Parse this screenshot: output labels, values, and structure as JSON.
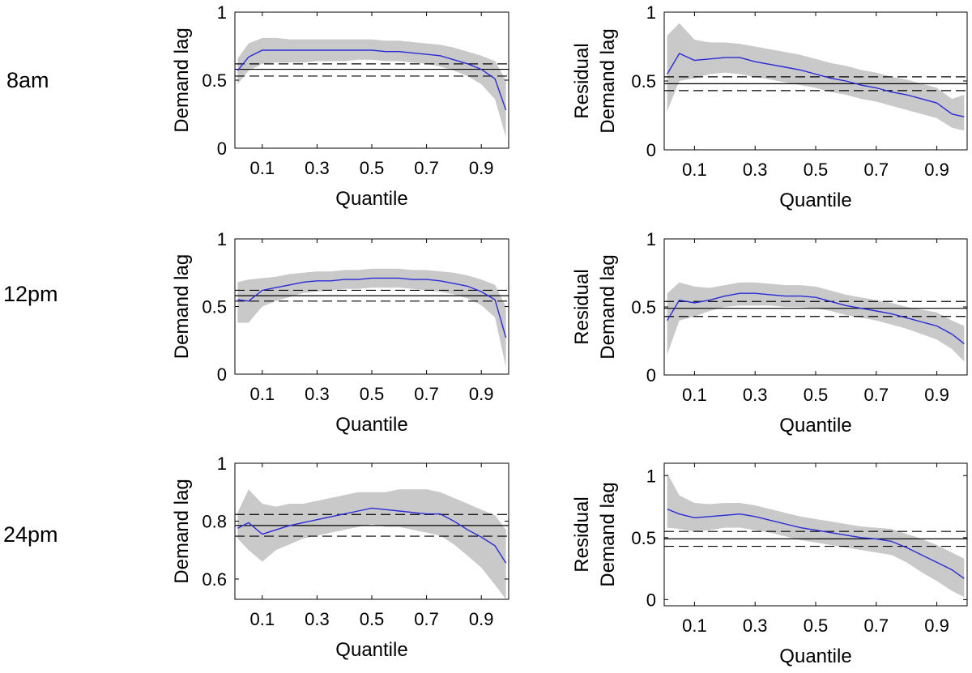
{
  "row_labels": [
    "8am",
    "12pm",
    "24pm"
  ],
  "colors": {
    "band": "#c9c9c9",
    "line": "#2a2ad6",
    "ref": "#000000"
  },
  "chart_data": [
    {
      "type": "line",
      "title": "",
      "row": "8am",
      "xlabel": "Quantile",
      "ylabel": [
        "Demand lag"
      ],
      "xlim": [
        0,
        1
      ],
      "ylim": [
        0,
        1
      ],
      "xticks": [
        0.1,
        0.3,
        0.5,
        0.7,
        0.9
      ],
      "yticks": [
        0,
        0.5,
        1
      ],
      "ytick_labels": [
        "0",
        "0.5",
        "1"
      ],
      "x": [
        0.01,
        0.05,
        0.1,
        0.15,
        0.2,
        0.25,
        0.3,
        0.35,
        0.4,
        0.45,
        0.5,
        0.55,
        0.6,
        0.65,
        0.7,
        0.75,
        0.8,
        0.85,
        0.9,
        0.95,
        0.99
      ],
      "series": [
        {
          "name": "estimate",
          "values": [
            0.57,
            0.67,
            0.72,
            0.72,
            0.72,
            0.72,
            0.72,
            0.72,
            0.72,
            0.72,
            0.72,
            0.71,
            0.71,
            0.7,
            0.69,
            0.68,
            0.65,
            0.62,
            0.58,
            0.51,
            0.28
          ]
        },
        {
          "name": "lower",
          "values": [
            0.47,
            0.57,
            0.62,
            0.63,
            0.63,
            0.63,
            0.64,
            0.64,
            0.64,
            0.65,
            0.65,
            0.64,
            0.64,
            0.63,
            0.62,
            0.6,
            0.57,
            0.53,
            0.47,
            0.36,
            0.08
          ]
        },
        {
          "name": "upper",
          "values": [
            0.66,
            0.77,
            0.81,
            0.81,
            0.8,
            0.8,
            0.8,
            0.8,
            0.8,
            0.8,
            0.8,
            0.79,
            0.79,
            0.78,
            0.77,
            0.76,
            0.74,
            0.71,
            0.68,
            0.64,
            0.5
          ]
        }
      ],
      "reference": {
        "solid": 0.58,
        "dashed": [
          0.53,
          0.62
        ]
      }
    },
    {
      "type": "line",
      "title": "",
      "row": "8am",
      "xlabel": "Quantile",
      "ylabel": [
        "Residual",
        "Demand lag"
      ],
      "xlim": [
        0,
        1
      ],
      "ylim": [
        0,
        1
      ],
      "xticks": [
        0.1,
        0.3,
        0.5,
        0.7,
        0.9
      ],
      "yticks": [
        0,
        0.5,
        1
      ],
      "ytick_labels": [
        "0",
        "0.5",
        "1"
      ],
      "x": [
        0.01,
        0.05,
        0.1,
        0.15,
        0.2,
        0.25,
        0.3,
        0.35,
        0.4,
        0.45,
        0.5,
        0.55,
        0.6,
        0.65,
        0.7,
        0.75,
        0.8,
        0.85,
        0.9,
        0.95,
        0.99
      ],
      "series": [
        {
          "name": "estimate",
          "values": [
            0.55,
            0.7,
            0.65,
            0.66,
            0.67,
            0.67,
            0.64,
            0.62,
            0.6,
            0.58,
            0.55,
            0.52,
            0.5,
            0.47,
            0.45,
            0.42,
            0.4,
            0.37,
            0.34,
            0.26,
            0.24
          ]
        },
        {
          "name": "lower",
          "values": [
            0.28,
            0.5,
            0.52,
            0.55,
            0.56,
            0.55,
            0.53,
            0.51,
            0.49,
            0.47,
            0.45,
            0.42,
            0.4,
            0.37,
            0.35,
            0.32,
            0.29,
            0.26,
            0.23,
            0.16,
            0.14
          ]
        },
        {
          "name": "upper",
          "values": [
            0.83,
            0.92,
            0.8,
            0.78,
            0.78,
            0.77,
            0.75,
            0.73,
            0.71,
            0.69,
            0.66,
            0.63,
            0.61,
            0.58,
            0.56,
            0.53,
            0.51,
            0.48,
            0.45,
            0.37,
            0.4
          ]
        }
      ],
      "reference": {
        "solid": 0.48,
        "dashed": [
          0.43,
          0.53
        ]
      }
    },
    {
      "type": "line",
      "title": "",
      "row": "12pm",
      "xlabel": "Quantile",
      "ylabel": [
        "Demand lag"
      ],
      "xlim": [
        0,
        1
      ],
      "ylim": [
        0,
        1
      ],
      "xticks": [
        0.1,
        0.3,
        0.5,
        0.7,
        0.9
      ],
      "yticks": [
        0,
        0.5,
        1
      ],
      "ytick_labels": [
        "0",
        "0.5",
        "1"
      ],
      "x": [
        0.01,
        0.05,
        0.1,
        0.15,
        0.2,
        0.25,
        0.3,
        0.35,
        0.4,
        0.45,
        0.5,
        0.55,
        0.6,
        0.65,
        0.7,
        0.75,
        0.8,
        0.85,
        0.9,
        0.95,
        0.99
      ],
      "series": [
        {
          "name": "estimate",
          "values": [
            0.55,
            0.54,
            0.62,
            0.64,
            0.66,
            0.68,
            0.69,
            0.69,
            0.7,
            0.7,
            0.71,
            0.71,
            0.71,
            0.7,
            0.7,
            0.69,
            0.67,
            0.65,
            0.61,
            0.55,
            0.27
          ]
        },
        {
          "name": "lower",
          "values": [
            0.38,
            0.38,
            0.5,
            0.54,
            0.57,
            0.6,
            0.61,
            0.62,
            0.63,
            0.63,
            0.64,
            0.64,
            0.64,
            0.63,
            0.62,
            0.61,
            0.59,
            0.56,
            0.51,
            0.42,
            0.05
          ]
        },
        {
          "name": "upper",
          "values": [
            0.68,
            0.7,
            0.71,
            0.72,
            0.74,
            0.75,
            0.76,
            0.76,
            0.77,
            0.77,
            0.78,
            0.78,
            0.78,
            0.77,
            0.77,
            0.76,
            0.75,
            0.73,
            0.7,
            0.66,
            0.5
          ]
        }
      ],
      "reference": {
        "solid": 0.58,
        "dashed": [
          0.54,
          0.62
        ]
      }
    },
    {
      "type": "line",
      "title": "",
      "row": "12pm",
      "xlabel": "Quantile",
      "ylabel": [
        "Residual",
        "Demand lag"
      ],
      "xlim": [
        0,
        1
      ],
      "ylim": [
        0,
        1
      ],
      "xticks": [
        0.1,
        0.3,
        0.5,
        0.7,
        0.9
      ],
      "yticks": [
        0,
        0.5,
        1
      ],
      "ytick_labels": [
        "0",
        "0.5",
        "1"
      ],
      "x": [
        0.01,
        0.05,
        0.1,
        0.15,
        0.2,
        0.25,
        0.3,
        0.35,
        0.4,
        0.45,
        0.5,
        0.55,
        0.6,
        0.65,
        0.7,
        0.75,
        0.8,
        0.85,
        0.9,
        0.95,
        0.99
      ],
      "series": [
        {
          "name": "estimate",
          "values": [
            0.4,
            0.55,
            0.53,
            0.55,
            0.58,
            0.6,
            0.6,
            0.59,
            0.58,
            0.58,
            0.57,
            0.54,
            0.51,
            0.49,
            0.47,
            0.45,
            0.42,
            0.39,
            0.36,
            0.3,
            0.23
          ]
        },
        {
          "name": "lower",
          "values": [
            0.15,
            0.4,
            0.43,
            0.47,
            0.5,
            0.51,
            0.51,
            0.51,
            0.5,
            0.5,
            0.49,
            0.47,
            0.44,
            0.42,
            0.4,
            0.37,
            0.34,
            0.3,
            0.26,
            0.19,
            0.1
          ]
        },
        {
          "name": "upper",
          "values": [
            0.6,
            0.68,
            0.65,
            0.64,
            0.66,
            0.68,
            0.68,
            0.67,
            0.66,
            0.66,
            0.65,
            0.62,
            0.59,
            0.57,
            0.55,
            0.53,
            0.5,
            0.48,
            0.46,
            0.4,
            0.36
          ]
        }
      ],
      "reference": {
        "solid": 0.49,
        "dashed": [
          0.43,
          0.54
        ]
      }
    },
    {
      "type": "line",
      "title": "",
      "row": "24pm",
      "xlabel": "Quantile",
      "ylabel": [
        "Demand lag"
      ],
      "xlim": [
        0,
        1
      ],
      "ylim": [
        0.53,
        1.0
      ],
      "xticks": [
        0.1,
        0.3,
        0.5,
        0.7,
        0.9
      ],
      "yticks": [
        0.6,
        0.8,
        1
      ],
      "ytick_labels": [
        "0.6",
        "0.8",
        "1"
      ],
      "x": [
        0.01,
        0.05,
        0.1,
        0.15,
        0.2,
        0.25,
        0.3,
        0.35,
        0.4,
        0.45,
        0.5,
        0.55,
        0.6,
        0.65,
        0.7,
        0.75,
        0.8,
        0.85,
        0.9,
        0.95,
        0.99
      ],
      "series": [
        {
          "name": "estimate",
          "values": [
            0.775,
            0.795,
            0.755,
            0.77,
            0.785,
            0.795,
            0.805,
            0.815,
            0.825,
            0.835,
            0.845,
            0.84,
            0.835,
            0.83,
            0.825,
            0.825,
            0.8,
            0.77,
            0.745,
            0.715,
            0.655
          ]
        },
        {
          "name": "lower",
          "values": [
            0.74,
            0.7,
            0.66,
            0.7,
            0.72,
            0.74,
            0.75,
            0.76,
            0.77,
            0.78,
            0.79,
            0.78,
            0.78,
            0.77,
            0.76,
            0.75,
            0.72,
            0.68,
            0.64,
            0.58,
            0.53
          ]
        },
        {
          "name": "upper",
          "values": [
            0.83,
            0.91,
            0.86,
            0.85,
            0.86,
            0.86,
            0.87,
            0.88,
            0.89,
            0.9,
            0.9,
            0.9,
            0.91,
            0.91,
            0.91,
            0.9,
            0.88,
            0.86,
            0.84,
            0.82,
            0.77
          ]
        }
      ],
      "reference": {
        "solid": 0.785,
        "dashed": [
          0.748,
          0.823
        ]
      }
    },
    {
      "type": "line",
      "title": "",
      "row": "24pm",
      "xlabel": "Quantile",
      "ylabel": [
        "Residual",
        "Demand lag"
      ],
      "xlim": [
        0,
        1
      ],
      "ylim": [
        -0.05,
        1.1
      ],
      "xticks": [
        0.1,
        0.3,
        0.5,
        0.7,
        0.9
      ],
      "yticks": [
        0,
        0.5,
        1
      ],
      "ytick_labels": [
        "0",
        "0.5",
        "1"
      ],
      "x": [
        0.01,
        0.05,
        0.1,
        0.15,
        0.2,
        0.25,
        0.3,
        0.35,
        0.4,
        0.45,
        0.5,
        0.55,
        0.6,
        0.65,
        0.7,
        0.75,
        0.8,
        0.85,
        0.9,
        0.95,
        0.99
      ],
      "series": [
        {
          "name": "estimate",
          "values": [
            0.73,
            0.69,
            0.66,
            0.67,
            0.68,
            0.69,
            0.67,
            0.64,
            0.61,
            0.58,
            0.56,
            0.54,
            0.52,
            0.5,
            0.49,
            0.47,
            0.42,
            0.36,
            0.3,
            0.24,
            0.17
          ]
        },
        {
          "name": "lower",
          "values": [
            0.58,
            0.57,
            0.55,
            0.56,
            0.58,
            0.58,
            0.56,
            0.54,
            0.51,
            0.48,
            0.46,
            0.44,
            0.42,
            0.4,
            0.38,
            0.36,
            0.3,
            0.22,
            0.15,
            0.07,
            0.02
          ]
        },
        {
          "name": "upper",
          "values": [
            1.02,
            0.84,
            0.78,
            0.77,
            0.78,
            0.78,
            0.76,
            0.73,
            0.7,
            0.67,
            0.65,
            0.63,
            0.61,
            0.59,
            0.58,
            0.57,
            0.53,
            0.49,
            0.44,
            0.38,
            0.33
          ]
        }
      ],
      "reference": {
        "solid": 0.49,
        "dashed": [
          0.43,
          0.55
        ]
      }
    }
  ]
}
